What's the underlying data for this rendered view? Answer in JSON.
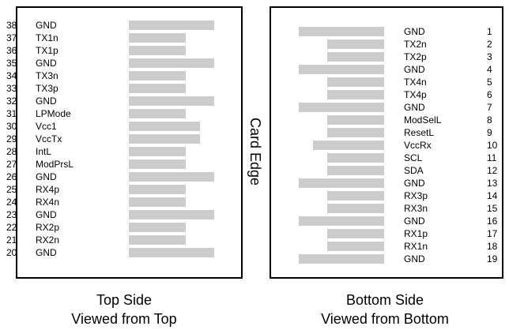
{
  "edge_label": "Card Edge",
  "top_side": {
    "caption_line1": "Top Side",
    "caption_line2": "Viewed from Top",
    "pins": [
      {
        "num": "38",
        "signal": "GND",
        "pad": "long"
      },
      {
        "num": "37",
        "signal": "TX1n",
        "pad": "short"
      },
      {
        "num": "36",
        "signal": "TX1p",
        "pad": "short"
      },
      {
        "num": "35",
        "signal": "GND",
        "pad": "long"
      },
      {
        "num": "34",
        "signal": "TX3n",
        "pad": "short"
      },
      {
        "num": "33",
        "signal": "TX3p",
        "pad": "short"
      },
      {
        "num": "32",
        "signal": "GND",
        "pad": "long"
      },
      {
        "num": "31",
        "signal": "LPMode",
        "pad": "short"
      },
      {
        "num": "30",
        "signal": "Vcc1",
        "pad": "medium"
      },
      {
        "num": "29",
        "signal": "VccTx",
        "pad": "medium"
      },
      {
        "num": "28",
        "signal": "IntL",
        "pad": "short"
      },
      {
        "num": "27",
        "signal": "ModPrsL",
        "pad": "short"
      },
      {
        "num": "26",
        "signal": "GND",
        "pad": "long"
      },
      {
        "num": "25",
        "signal": "RX4p",
        "pad": "short"
      },
      {
        "num": "24",
        "signal": "RX4n",
        "pad": "short"
      },
      {
        "num": "23",
        "signal": "GND",
        "pad": "long"
      },
      {
        "num": "22",
        "signal": "RX2p",
        "pad": "short"
      },
      {
        "num": "21",
        "signal": "RX2n",
        "pad": "short"
      },
      {
        "num": "20",
        "signal": "GND",
        "pad": "long"
      }
    ]
  },
  "bottom_side": {
    "caption_line1": "Bottom Side",
    "caption_line2": "Viewed from Bottom",
    "pins": [
      {
        "num": "1",
        "signal": "GND",
        "pad": "long"
      },
      {
        "num": "2",
        "signal": "TX2n",
        "pad": "short"
      },
      {
        "num": "3",
        "signal": "TX2p",
        "pad": "short"
      },
      {
        "num": "4",
        "signal": "GND",
        "pad": "long"
      },
      {
        "num": "5",
        "signal": "TX4n",
        "pad": "short"
      },
      {
        "num": "6",
        "signal": "TX4p",
        "pad": "short"
      },
      {
        "num": "7",
        "signal": "GND",
        "pad": "long"
      },
      {
        "num": "8",
        "signal": "ModSelL",
        "pad": "short"
      },
      {
        "num": "9",
        "signal": "ResetL",
        "pad": "short"
      },
      {
        "num": "10",
        "signal": "VccRx",
        "pad": "medium"
      },
      {
        "num": "11",
        "signal": "SCL",
        "pad": "short"
      },
      {
        "num": "12",
        "signal": "SDA",
        "pad": "short"
      },
      {
        "num": "13",
        "signal": "GND",
        "pad": "long"
      },
      {
        "num": "14",
        "signal": "RX3p",
        "pad": "short"
      },
      {
        "num": "15",
        "signal": "RX3n",
        "pad": "short"
      },
      {
        "num": "16",
        "signal": "GND",
        "pad": "long"
      },
      {
        "num": "17",
        "signal": "RX1p",
        "pad": "short"
      },
      {
        "num": "18",
        "signal": "RX1n",
        "pad": "short"
      },
      {
        "num": "19",
        "signal": "GND",
        "pad": "long"
      }
    ]
  },
  "colors": {
    "pad": "#cccccc",
    "border": "#000000"
  }
}
